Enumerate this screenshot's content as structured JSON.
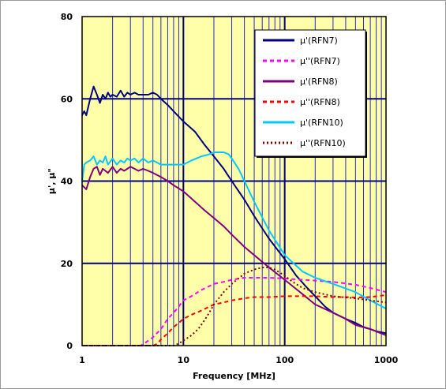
{
  "chart_data": {
    "type": "line",
    "xlabel": "Frequency  [MHz]",
    "ylabel": "μ', μ\"",
    "x_scale": "log",
    "xlim": [
      1,
      1000
    ],
    "ylim": [
      0,
      80
    ],
    "x_ticks": [
      "1",
      "10",
      "100",
      "1000"
    ],
    "y_ticks": [
      "0",
      "20",
      "40",
      "60",
      "80"
    ],
    "grid": true,
    "legend_position": "top-right",
    "colors": {
      "plot_background": "#FFFFAA",
      "major_grid": "#00007A",
      "minor_grid": "#2A2AC8"
    },
    "series": [
      {
        "name": "μ'(RFN7)",
        "color": "#000080",
        "style": "solid",
        "x": [
          1,
          1.05,
          1.1,
          1.2,
          1.3,
          1.4,
          1.5,
          1.6,
          1.7,
          1.8,
          1.9,
          2,
          2.2,
          2.4,
          2.6,
          2.8,
          3,
          3.3,
          3.6,
          4,
          4.5,
          5,
          5.5,
          6,
          7,
          8,
          10,
          13,
          16,
          20,
          25,
          30,
          40,
          50,
          70,
          100,
          130,
          160,
          200,
          250,
          300,
          400,
          500,
          600,
          700,
          800,
          1000
        ],
        "values": [
          56,
          57,
          56,
          60,
          63,
          61,
          59,
          61,
          60,
          61.5,
          60.5,
          61,
          60.5,
          62,
          60.5,
          61.5,
          61,
          61.5,
          61,
          61,
          61,
          61.5,
          61,
          60,
          58.5,
          57,
          54.5,
          52,
          49,
          46,
          43,
          40,
          35.5,
          31.5,
          26,
          21,
          17,
          14.5,
          12,
          9.5,
          8,
          6.5,
          5.5,
          4.5,
          4,
          3.5,
          3
        ]
      },
      {
        "name": "μ''(RFN7)",
        "color": "#FF00FF",
        "style": "dashed",
        "x": [
          1,
          2,
          3,
          3.8,
          4.2,
          5,
          6,
          7,
          8,
          9,
          10,
          12,
          15,
          20,
          25,
          30,
          40,
          50,
          70,
          100,
          150,
          200,
          300,
          500,
          700,
          1000
        ],
        "values": [
          0,
          0,
          0,
          0,
          0.7,
          2,
          4,
          6.5,
          8,
          9.5,
          11,
          12,
          13.5,
          15,
          15.5,
          16,
          16.5,
          16.5,
          16.5,
          16.3,
          16,
          15.8,
          15.5,
          14.8,
          14,
          13
        ]
      },
      {
        "name": "μ'(RFN8)",
        "color": "#7F007F",
        "style": "solid",
        "x": [
          1,
          1.05,
          1.1,
          1.2,
          1.3,
          1.4,
          1.5,
          1.6,
          1.8,
          2,
          2.2,
          2.4,
          2.6,
          3,
          3.3,
          3.6,
          4,
          4.5,
          5,
          6,
          7,
          8,
          10,
          13,
          16,
          20,
          25,
          30,
          40,
          50,
          70,
          100,
          150,
          200,
          300,
          400,
          500,
          700,
          1000
        ],
        "values": [
          39,
          38.5,
          38,
          41,
          43,
          43.5,
          41.5,
          43,
          42,
          43.5,
          42,
          43,
          42.5,
          43.5,
          43,
          42.5,
          43,
          42.5,
          42,
          41,
          40,
          39,
          37.5,
          35,
          33,
          31,
          29,
          27,
          24,
          22,
          19,
          16,
          12.5,
          10,
          8,
          6.5,
          5,
          4,
          2.5
        ]
      },
      {
        "name": "μ''(RFN8)",
        "color": "#FF0000",
        "style": "dashed",
        "x": [
          1,
          3,
          5,
          5.5,
          6,
          7,
          8,
          9,
          10,
          12,
          15,
          20,
          25,
          30,
          40,
          50,
          70,
          100,
          150,
          200,
          300,
          400,
          500,
          700,
          1000
        ],
        "values": [
          0,
          0,
          0,
          0.4,
          1.5,
          3,
          4.5,
          5.5,
          6.5,
          7.5,
          8.5,
          10,
          10.5,
          11,
          11.5,
          11.8,
          11.8,
          12,
          12,
          12,
          11.8,
          11.8,
          11.7,
          11.8,
          12.3
        ]
      },
      {
        "name": "μ'(RFN10)",
        "color": "#00C8FF",
        "style": "solid",
        "x": [
          1,
          1.05,
          1.1,
          1.2,
          1.3,
          1.4,
          1.5,
          1.6,
          1.7,
          1.8,
          2,
          2.2,
          2.4,
          2.6,
          2.8,
          3,
          3.3,
          3.6,
          4,
          4.5,
          5,
          5.5,
          6,
          7,
          8,
          10,
          12,
          15,
          18,
          20,
          25,
          28,
          30,
          35,
          40,
          50,
          70,
          100,
          150,
          200,
          300,
          500,
          700,
          1000
        ],
        "values": [
          40,
          44,
          44.5,
          45,
          46,
          44,
          45,
          44.5,
          46,
          44,
          45.5,
          44,
          45,
          44.5,
          45.5,
          45,
          45.5,
          44.5,
          45.5,
          44.5,
          45,
          44.5,
          44,
          44,
          44,
          44,
          45,
          46,
          46.5,
          47,
          47,
          46.5,
          45.5,
          43,
          40,
          35,
          28,
          22,
          18,
          16.5,
          15,
          13,
          11,
          9
        ]
      },
      {
        "name": "μ''(RFN10)",
        "color": "#800000",
        "style": "dotted",
        "x": [
          1,
          5,
          8,
          9,
          10,
          12,
          14,
          16,
          18,
          20,
          25,
          30,
          40,
          50,
          60,
          70,
          80,
          100,
          120,
          150,
          200,
          300,
          500,
          700,
          1000
        ],
        "values": [
          0,
          0,
          0,
          0.5,
          1.2,
          2.5,
          4,
          6,
          8,
          10,
          13,
          15,
          17.5,
          18.5,
          19,
          19,
          18.5,
          17,
          15.5,
          14,
          13,
          12,
          11.5,
          11,
          10.5
        ]
      }
    ]
  }
}
